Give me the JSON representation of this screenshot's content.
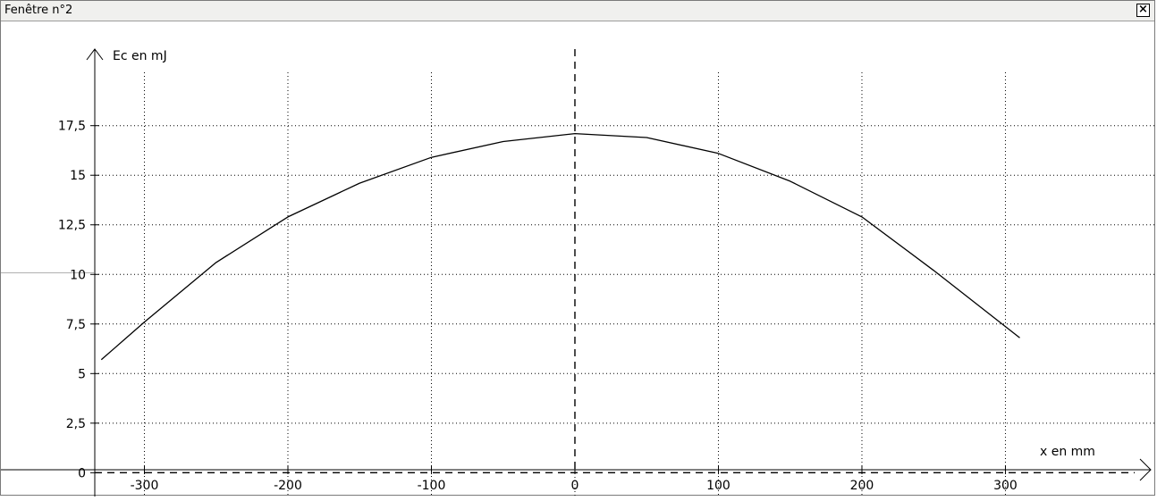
{
  "window": {
    "title": "Fenêtre n°2",
    "close_label": "×"
  },
  "chart_data": {
    "type": "line",
    "ylabel": "Ec en mJ",
    "xlabel": "x en mm",
    "xlim": [
      -400,
      405
    ],
    "ylim": [
      -1.2,
      22.8
    ],
    "x_ticks": [
      -300,
      -200,
      -100,
      0,
      100,
      200,
      300
    ],
    "x_tick_labels": [
      "-300",
      "-200",
      "-100",
      "0",
      "100",
      "200",
      "300"
    ],
    "y_ticks": [
      0,
      2.5,
      5,
      7.5,
      10,
      12.5,
      15,
      17.5
    ],
    "y_tick_labels": [
      "0",
      "2,5",
      "5",
      "7,5",
      "10",
      "12,5",
      "15",
      "17,5"
    ],
    "grid": true,
    "series": [
      {
        "color": "#000000",
        "x": [
          -330,
          -300,
          -250,
          -200,
          -150,
          -100,
          -50,
          0,
          50,
          100,
          150,
          200,
          250,
          310
        ],
        "y": [
          5.7,
          7.6,
          10.6,
          12.9,
          14.6,
          15.9,
          16.7,
          17.1,
          16.9,
          16.1,
          14.7,
          12.9,
          10.2,
          6.8
        ]
      }
    ]
  }
}
